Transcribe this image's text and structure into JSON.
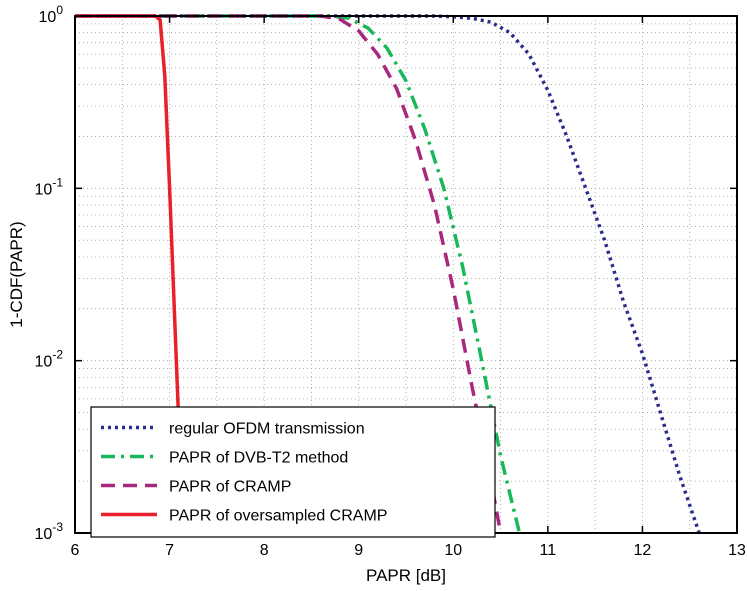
{
  "chart_data": {
    "type": "line",
    "xlabel": "PAPR [dB]",
    "ylabel": "1-CDF(PAPR)",
    "xlim": [
      6,
      13
    ],
    "ylim": [
      0.001,
      1
    ],
    "yscale": "log",
    "grid": true,
    "grid_style": "dotted",
    "x_ticks": [
      "6",
      "7",
      "8",
      "9",
      "10",
      "11",
      "12",
      "13"
    ],
    "y_ticks": [
      {
        "value": 1,
        "base": "10",
        "exp": "0"
      },
      {
        "value": 0.1,
        "base": "10",
        "exp": "-1"
      },
      {
        "value": 0.01,
        "base": "10",
        "exp": "-2"
      },
      {
        "value": 0.001,
        "base": "10",
        "exp": "-3"
      }
    ],
    "legend_position": "bottom-left",
    "series": [
      {
        "name": "regular OFDM transmission",
        "color": "#2b2d8c",
        "style": "dotted",
        "x": [
          6.0,
          9.8,
          10.0,
          10.2,
          10.4,
          10.6,
          10.8,
          11.0,
          11.2,
          11.4,
          11.6,
          11.8,
          12.0,
          12.2,
          12.4,
          12.6
        ],
        "y": [
          1.0,
          1.0,
          0.99,
          0.97,
          0.92,
          0.8,
          0.6,
          0.37,
          0.2,
          0.1,
          0.05,
          0.022,
          0.011,
          0.0048,
          0.0021,
          0.001
        ]
      },
      {
        "name": "PAPR of DVB-T2 method",
        "color": "#18b85a",
        "style": "dashdot",
        "x": [
          6.0,
          8.7,
          8.9,
          9.1,
          9.3,
          9.5,
          9.7,
          9.9,
          10.1,
          10.3,
          10.5,
          10.7
        ],
        "y": [
          1.0,
          1.0,
          0.97,
          0.85,
          0.65,
          0.42,
          0.22,
          0.1,
          0.035,
          0.01,
          0.0028,
          0.001
        ]
      },
      {
        "name": "PAPR of CRAMP",
        "color": "#a8287e",
        "style": "dashed",
        "x": [
          6.0,
          8.6,
          8.8,
          9.0,
          9.2,
          9.4,
          9.6,
          9.8,
          10.0,
          10.2,
          10.35,
          10.5
        ],
        "y": [
          1.0,
          1.0,
          0.96,
          0.82,
          0.6,
          0.38,
          0.19,
          0.08,
          0.026,
          0.007,
          0.0028,
          0.001
        ]
      },
      {
        "name": "PAPR of oversampled CRAMP",
        "color": "#e8202a",
        "style": "solid",
        "x": [
          6.0,
          6.85,
          6.9,
          6.95,
          7.0,
          7.05,
          7.1,
          7.13
        ],
        "y": [
          1.0,
          1.0,
          0.95,
          0.45,
          0.1,
          0.02,
          0.004,
          0.001
        ]
      }
    ]
  }
}
